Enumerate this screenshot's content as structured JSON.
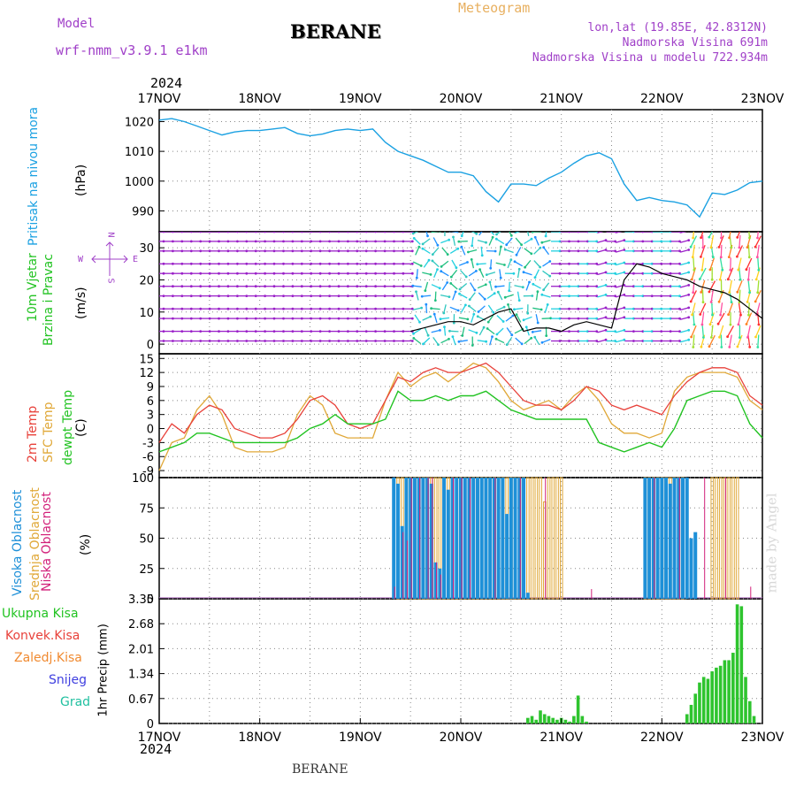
{
  "header": {
    "model_label": "Model",
    "model_name": "wrf-nmm_v3.9.1 e1km",
    "station": "BERANE",
    "meteogram": "Meteogram",
    "lonlat": "lon,lat (19.85E, 42.8312N)",
    "elevation": "Nadmorska Visina 691m",
    "model_elevation": "Nadmorska Visina u modelu 722.934m",
    "year_top": "2024",
    "year_bottom": "2024",
    "footer_station": "BERANE",
    "watermark": "made by Angel"
  },
  "colors": {
    "pressure": "#1ba1e2",
    "temp2m": "#e8413a",
    "sfc": "#e0a838",
    "dewpt": "#22c322",
    "high_cloud": "#1e90d8",
    "mid_cloud": "#e0a838",
    "low_cloud": "#d2207a",
    "precip": "#2ec42e",
    "wind_arrow": "#9a20c8"
  },
  "labels": {
    "pressure": [
      "Pritisak na nivou mora",
      "(hPa)"
    ],
    "wind": [
      "10m Vjetar",
      "Brzina i Pravac",
      "(m/s)"
    ],
    "compass": {
      "n": "N",
      "s": "S",
      "e": "E",
      "w": "W"
    },
    "temp": [
      "2m Temp",
      "SFC Temp",
      "dewpt Temp",
      "(C)"
    ],
    "cloud": [
      "Visoka Oblacnost",
      "Srednja Oblacnost",
      "Niska Oblacnost",
      "(%)"
    ],
    "precip_legend": [
      "Ukupna Kisa",
      "Konvek.Kisa",
      "Zaledj.Kisa",
      "Snijeg",
      "Grad"
    ],
    "precip_axis": "1hr Precip (mm)"
  },
  "chart_data": {
    "type": "line",
    "x_dates": [
      "17NOV",
      "18NOV",
      "19NOV",
      "20NOV",
      "21NOV",
      "22NOV",
      "23NOV"
    ],
    "x_range_hours": [
      0,
      144
    ],
    "panels": {
      "pressure": {
        "ylim": [
          983,
          1024
        ],
        "yticks": [
          "1020",
          "1010",
          "1000",
          "990"
        ],
        "ytick_values": [
          1020,
          1010,
          1000,
          990
        ],
        "series": [
          {
            "x": [
              0,
              3,
              6,
              9,
              12,
              15,
              18,
              21,
              24,
              27,
              30,
              33,
              36,
              39,
              42,
              45,
              48,
              51,
              54,
              57,
              60,
              63,
              66,
              69,
              72,
              75,
              78,
              81,
              84,
              87,
              90,
              93,
              96,
              99,
              102,
              105,
              108,
              111,
              114,
              117,
              120,
              123,
              126,
              129,
              132,
              135,
              138,
              141,
              144
            ],
            "y": [
              1020.5,
              1021,
              1020,
              1018.5,
              1017,
              1015.5,
              1016.5,
              1017,
              1017,
              1017.5,
              1018,
              1016,
              1015.2,
              1015.8,
              1017,
              1017.5,
              1017,
              1017.5,
              1013,
              1010,
              1008.5,
              1007,
              1005,
              1003,
              1003,
              1001.8,
              996.5,
              993,
              999,
              999,
              998.5,
              1001,
              1003,
              1006,
              1008.5,
              1009.5,
              1007.5,
              999,
              993.5,
              994.5,
              993.5,
              993,
              992,
              988,
              996,
              995.5,
              997,
              999.5,
              1000
            ]
          }
        ]
      },
      "wind": {
        "ylim": [
          -3,
          35
        ],
        "yticks": [
          "30",
          "20",
          "10",
          "0"
        ],
        "ytick_values": [
          30,
          20,
          10,
          0
        ],
        "series": [
          {
            "x": [
              60,
              63,
              66,
              69,
              72,
              75,
              78,
              81,
              84,
              87,
              90,
              93,
              96,
              99,
              102,
              105,
              108,
              111,
              114,
              117,
              120,
              123,
              126,
              129,
              132,
              135,
              138,
              141,
              144
            ],
            "y": [
              4,
              5,
              6,
              7,
              7,
              6,
              8,
              10,
              11,
              4,
              5,
              5,
              4,
              6,
              7,
              6,
              5,
              20,
              25,
              24,
              22,
              21,
              20,
              18,
              17,
              16,
              14,
              11,
              8
            ]
          }
        ]
      },
      "temp": {
        "ylim": [
          -10.5,
          16
        ],
        "yticks": [
          "15",
          "12",
          "9",
          "6",
          "3",
          "0",
          "-3",
          "-6",
          "-9"
        ],
        "ytick_values": [
          15,
          12,
          9,
          6,
          3,
          0,
          -3,
          -6,
          -9
        ],
        "series": [
          {
            "name": "2m Temp",
            "x": [
              0,
              3,
              6,
              9,
              12,
              15,
              18,
              21,
              24,
              27,
              30,
              33,
              36,
              39,
              42,
              45,
              48,
              51,
              54,
              57,
              60,
              63,
              66,
              69,
              72,
              75,
              78,
              81,
              84,
              87,
              90,
              93,
              96,
              99,
              102,
              105,
              108,
              111,
              114,
              117,
              120,
              123,
              126,
              129,
              132,
              135,
              138,
              141,
              144
            ],
            "y": [
              -3,
              1,
              -1,
              3,
              5,
              4,
              0,
              -1,
              -2,
              -2,
              -1,
              2,
              6,
              7,
              5,
              1,
              0,
              1,
              6,
              11,
              10,
              12,
              13,
              12,
              12,
              13,
              14,
              12,
              9,
              6,
              5,
              5,
              4,
              6,
              9,
              8,
              5,
              4,
              5,
              4,
              3,
              7,
              10,
              12,
              13,
              13,
              12,
              7,
              5
            ]
          },
          {
            "name": "SFC Temp",
            "x": [
              0,
              3,
              6,
              9,
              12,
              15,
              18,
              21,
              24,
              27,
              30,
              33,
              36,
              39,
              42,
              45,
              48,
              51,
              54,
              57,
              60,
              63,
              66,
              69,
              72,
              75,
              78,
              81,
              84,
              87,
              90,
              93,
              96,
              99,
              102,
              105,
              108,
              111,
              114,
              117,
              120,
              123,
              126,
              129,
              132,
              135,
              138,
              141,
              144
            ],
            "y": [
              -9,
              -3,
              -2,
              4,
              7,
              3,
              -4,
              -5,
              -5,
              -5,
              -4,
              3,
              7,
              5,
              -1,
              -2,
              -2,
              -2,
              6,
              12,
              9,
              11,
              12,
              10,
              12,
              14,
              13,
              10,
              6,
              4,
              5,
              6,
              4,
              7,
              9,
              6,
              1,
              -1,
              -1,
              -2,
              -1,
              8,
              11,
              12,
              12,
              12,
              11,
              6,
              4
            ]
          },
          {
            "name": "dewpt Temp",
            "x": [
              0,
              3,
              6,
              9,
              12,
              15,
              18,
              21,
              24,
              27,
              30,
              33,
              36,
              39,
              42,
              45,
              48,
              51,
              54,
              57,
              60,
              63,
              66,
              69,
              72,
              75,
              78,
              81,
              84,
              87,
              90,
              93,
              96,
              99,
              102,
              105,
              108,
              111,
              114,
              117,
              120,
              123,
              126,
              129,
              132,
              135,
              138,
              141,
              144
            ],
            "y": [
              -5,
              -4,
              -3,
              -1,
              -1,
              -2,
              -3,
              -3,
              -3,
              -3,
              -3,
              -2,
              0,
              1,
              3,
              1,
              1,
              1,
              2,
              8,
              6,
              6,
              7,
              6,
              7,
              7,
              8,
              6,
              4,
              3,
              2,
              2,
              2,
              2,
              2,
              -3,
              -4,
              -5,
              -4,
              -3,
              -4,
              0,
              6,
              7,
              8,
              8,
              7,
              1,
              -2
            ]
          }
        ]
      },
      "cloud": {
        "ylim": [
          0,
          100
        ],
        "yticks": [
          "100",
          "75",
          "50",
          "25",
          "0"
        ],
        "ytick_values": [
          100,
          75,
          50,
          25,
          0
        ],
        "high_x": [
          56,
          57,
          58,
          59,
          60,
          61,
          62,
          63,
          64,
          65,
          66,
          67,
          68,
          69,
          70,
          71,
          72,
          73,
          74,
          75,
          76,
          77,
          78,
          79,
          80,
          81,
          82,
          83,
          84,
          85,
          86,
          87,
          88,
          89,
          90,
          91,
          92,
          116,
          117,
          118,
          119,
          120,
          121,
          122,
          123,
          124,
          125,
          126,
          127,
          128,
          129,
          130,
          131,
          132,
          133,
          134,
          135,
          136,
          137,
          138,
          139,
          140
        ],
        "high_y": [
          100,
          95,
          60,
          100,
          100,
          100,
          100,
          100,
          100,
          95,
          30,
          25,
          100,
          90,
          100,
          100,
          100,
          100,
          100,
          100,
          100,
          100,
          100,
          100,
          100,
          100,
          100,
          70,
          100,
          100,
          100,
          100,
          5,
          0,
          0,
          0,
          0,
          100,
          100,
          100,
          100,
          100,
          100,
          95,
          100,
          100,
          100,
          100,
          50,
          55,
          0,
          0,
          0,
          0,
          0,
          0,
          0,
          0,
          0,
          0,
          0,
          0
        ],
        "mid_x": [
          57,
          58,
          59,
          60,
          61,
          62,
          63,
          64,
          65,
          66,
          67,
          68,
          69,
          70,
          71,
          72,
          73,
          74,
          75,
          76,
          77,
          78,
          79,
          80,
          81,
          82,
          83,
          84,
          85,
          86,
          87,
          88,
          89,
          90,
          91,
          92,
          93,
          94,
          95,
          96,
          97,
          98,
          99,
          100,
          101,
          102,
          103,
          104,
          105,
          106,
          107,
          108,
          109,
          110,
          111,
          112,
          113,
          114,
          115,
          116,
          117,
          118,
          119,
          120,
          121,
          122,
          123,
          124,
          125,
          126,
          127,
          128,
          129,
          130,
          131,
          132,
          133,
          134,
          135,
          136,
          137,
          138,
          139,
          140
        ],
        "mid_y": [
          100,
          100,
          100,
          100,
          100,
          100,
          100,
          100,
          100,
          100,
          100,
          100,
          100,
          100,
          100,
          100,
          100,
          100,
          100,
          100,
          100,
          100,
          100,
          100,
          100,
          100,
          100,
          100,
          100,
          100,
          100,
          100,
          100,
          100,
          100,
          80,
          100,
          100,
          100,
          100,
          0,
          0,
          0,
          0,
          0,
          0,
          0,
          0,
          0,
          0,
          0,
          0,
          0,
          0,
          0,
          0,
          0,
          0,
          0,
          100,
          100,
          100,
          100,
          100,
          100,
          100,
          100,
          100,
          100,
          0,
          0,
          0,
          0,
          0,
          0,
          100,
          100,
          100,
          100,
          100,
          100,
          100,
          0,
          0
        ],
        "low_x": [
          56,
          58,
          59,
          60,
          62,
          64,
          65,
          66,
          67,
          70,
          72,
          74,
          80,
          86,
          92,
          103,
          118,
          124,
          130,
          135,
          141
        ],
        "low_y": [
          10,
          55,
          48,
          100,
          100,
          100,
          100,
          30,
          20,
          100,
          100,
          100,
          100,
          100,
          100,
          8,
          100,
          100,
          100,
          100,
          10
        ]
      },
      "precip": {
        "ylim": [
          0,
          3.35
        ],
        "yticks": [
          "3.35",
          "2.68",
          "2.01",
          "1.34",
          "0.67",
          "0"
        ],
        "ytick_values": [
          3.35,
          2.68,
          2.01,
          1.34,
          0.67,
          0
        ],
        "x": [
          88,
          89,
          90,
          91,
          92,
          93,
          94,
          95,
          96,
          97,
          98,
          99,
          100,
          101,
          102,
          126,
          127,
          128,
          129,
          130,
          131,
          132,
          133,
          134,
          135,
          136,
          137,
          138,
          139,
          140,
          141,
          142
        ],
        "y": [
          0.15,
          0.2,
          0.1,
          0.35,
          0.25,
          0.2,
          0.15,
          0.1,
          0.15,
          0.1,
          0.05,
          0.2,
          0.75,
          0.2,
          0.05,
          0.25,
          0.5,
          0.8,
          1.1,
          1.25,
          1.2,
          1.4,
          1.5,
          1.55,
          1.7,
          1.7,
          1.9,
          3.2,
          3.15,
          1.25,
          0.6,
          0.2
        ]
      }
    }
  }
}
